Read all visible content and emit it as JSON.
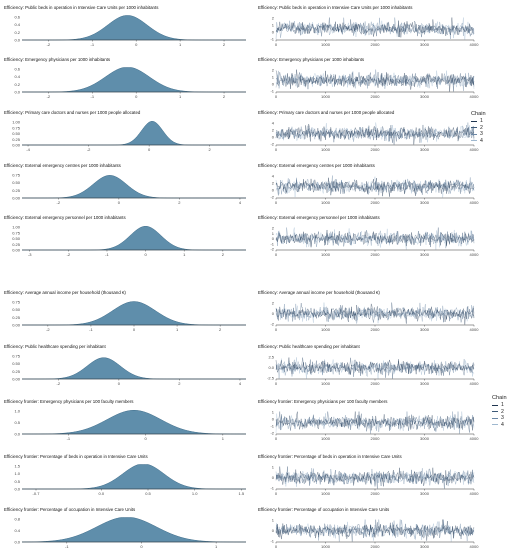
{
  "legend": {
    "title": "Chain",
    "items": [
      "1",
      "2",
      "3",
      "4"
    ]
  },
  "chart_data": [
    {
      "type": "area",
      "title": "Efficiency: Public beds in operation in Intensive Care Units per 1000 inhabitants",
      "density": {
        "mean": -0.2,
        "sd": 0.45,
        "xlim": [
          -2.6,
          2.5
        ],
        "xticks": [
          "-2",
          "-1",
          "0",
          "1",
          "2"
        ],
        "ylim": [
          0,
          0.9
        ],
        "yticks": [
          "0.6",
          "0.4",
          "0.2",
          "0.0"
        ]
      },
      "trace": {
        "x_range": [
          0,
          4000
        ],
        "xticks": [
          "0",
          "1000",
          "2000",
          "3000",
          "4000"
        ],
        "yticks": [
          "2",
          "1",
          "0",
          "-1"
        ]
      }
    },
    {
      "type": "area",
      "title": "Efficiency: Emergency physicians per 1000 inhabitants",
      "density": {
        "mean": -0.2,
        "sd": 0.5,
        "xlim": [
          -2.6,
          2.5
        ],
        "xticks": [
          "-2",
          "-1",
          "0",
          "1",
          "2"
        ],
        "ylim": [
          0,
          0.8
        ],
        "yticks": [
          "0.6",
          "0.4",
          "0.2",
          "0.0"
        ]
      },
      "trace": {
        "x_range": [
          0,
          4000
        ],
        "xticks": [
          "0",
          "1000",
          "2000",
          "3000",
          "4000"
        ],
        "yticks": [
          "2",
          "1",
          "0",
          "-1"
        ]
      }
    },
    {
      "type": "area",
      "title": "Efficiency: Primary care doctors and nurses per 1000 people allocated",
      "density": {
        "mean": 0.1,
        "sd": 0.35,
        "xlim": [
          -4.2,
          3.2
        ],
        "xticks": [
          "-4",
          "-2",
          "0",
          "2"
        ],
        "ylim": [
          0,
          1.2
        ],
        "yticks": [
          "1.00",
          "0.75",
          "0.50",
          "0.25",
          "0.00"
        ]
      },
      "trace": {
        "x_range": [
          0,
          4000
        ],
        "xticks": [
          "0",
          "1000",
          "2000",
          "3000",
          "4000"
        ],
        "yticks": [
          "4",
          "2",
          "0",
          "-2"
        ]
      }
    },
    {
      "type": "area",
      "title": "Efficiency: External emergency centres per 1000 inhabitants",
      "density": {
        "mean": -0.3,
        "sd": 0.55,
        "xlim": [
          -3.2,
          4.2
        ],
        "xticks": [
          "-2",
          "0",
          "2",
          "4"
        ],
        "ylim": [
          0,
          0.8
        ],
        "yticks": [
          "0.75",
          "0.50",
          "0.25",
          "0.00"
        ]
      },
      "trace": {
        "x_range": [
          0,
          4000
        ],
        "xticks": [
          "0",
          "1000",
          "2000",
          "3000",
          "4000"
        ],
        "yticks": [
          "4",
          "2",
          "0",
          "-2"
        ]
      }
    },
    {
      "type": "area",
      "title": "Efficiency: External emergency personnel per 1000 inhabitants",
      "density": {
        "mean": 0.0,
        "sd": 0.4,
        "xlim": [
          -3.2,
          2.6
        ],
        "xticks": [
          "-3",
          "-2",
          "-1",
          "0",
          "1",
          "2"
        ],
        "ylim": [
          0,
          1.05
        ],
        "yticks": [
          "1.00",
          "0.75",
          "0.50",
          "0.25",
          "0.00"
        ]
      },
      "trace": {
        "x_range": [
          0,
          4000
        ],
        "xticks": [
          "0",
          "1000",
          "2000",
          "3000",
          "4000"
        ],
        "yticks": [
          "2",
          "1",
          "0",
          "-1",
          "-2"
        ]
      }
    },
    {
      "type": "area",
      "title": "Efficiency: Average annual income per household (thousand €)",
      "density": {
        "mean": 0.0,
        "sd": 0.5,
        "xlim": [
          -2.6,
          2.6
        ],
        "xticks": [
          "-2",
          "-1",
          "0",
          "1",
          "2"
        ],
        "ylim": [
          0,
          0.85
        ],
        "yticks": [
          "0.75",
          "0.50",
          "0.25",
          "0.00"
        ]
      },
      "trace": {
        "x_range": [
          0,
          4000
        ],
        "xticks": [
          "0",
          "1000",
          "2000",
          "3000",
          "4000"
        ],
        "yticks": [
          "2",
          "0",
          "-2"
        ]
      }
    },
    {
      "type": "area",
      "title": "Efficiency: Public healthcare spending per inhabitant",
      "density": {
        "mean": -0.5,
        "sd": 0.55,
        "xlim": [
          -3.2,
          4.2
        ],
        "xticks": [
          "-2",
          "0",
          "2",
          "4"
        ],
        "ylim": [
          0,
          0.85
        ],
        "yticks": [
          "0.75",
          "0.50",
          "0.25",
          "0.00"
        ]
      },
      "trace": {
        "x_range": [
          0,
          4000
        ],
        "xticks": [
          "0",
          "1000",
          "2000",
          "3000",
          "4000"
        ],
        "yticks": [
          "2.5",
          "0.0",
          "-2.5"
        ]
      }
    },
    {
      "type": "area",
      "title": "Efficiency frontier: Emergency physicians per 100 faculty members",
      "density": {
        "mean": -0.15,
        "sd": 0.35,
        "xlim": [
          -1.6,
          1.3
        ],
        "xticks": [
          "-1",
          "0",
          "1"
        ],
        "ylim": [
          0,
          1.2
        ],
        "yticks": [
          "1.0",
          "0.5",
          "0.0"
        ]
      },
      "trace": {
        "x_range": [
          0,
          4000
        ],
        "xticks": [
          "0",
          "1000",
          "2000",
          "3000",
          "4000"
        ],
        "yticks": [
          "1",
          "0",
          "-1",
          "-2"
        ]
      }
    },
    {
      "type": "area",
      "title": "Efficiency frontier: Percentage of beds in operation in Intensive Care Units",
      "density": {
        "mean": 0.45,
        "sd": 0.22,
        "xlim": [
          -0.85,
          1.55
        ],
        "xticks": [
          "-0.7",
          "0.0",
          "0.5",
          "1.0",
          "1.5"
        ],
        "ylim": [
          0,
          1.8
        ],
        "yticks": [
          "1.5",
          "1.0",
          "0.5",
          "0.0"
        ]
      },
      "trace": {
        "x_range": [
          0,
          4000
        ],
        "xticks": [
          "0",
          "1000",
          "2000",
          "3000",
          "4000"
        ],
        "yticks": [
          "1",
          "0",
          "-1"
        ]
      }
    },
    {
      "type": "area",
      "title": "Efficiency frontier: Percentage of occupation in Intensive Care Units",
      "density": {
        "mean": -0.2,
        "sd": 0.4,
        "xlim": [
          -1.6,
          1.4
        ],
        "xticks": [
          "-1",
          "0",
          "1"
        ],
        "ylim": [
          0,
          1.0
        ],
        "yticks": [
          "0.8",
          "0.4",
          "0.0"
        ]
      },
      "trace": {
        "x_range": [
          0,
          4000
        ],
        "xticks": [
          "0",
          "1000",
          "2000",
          "3000",
          "4000"
        ],
        "yticks": [
          "1",
          "0",
          "-1"
        ]
      }
    }
  ]
}
